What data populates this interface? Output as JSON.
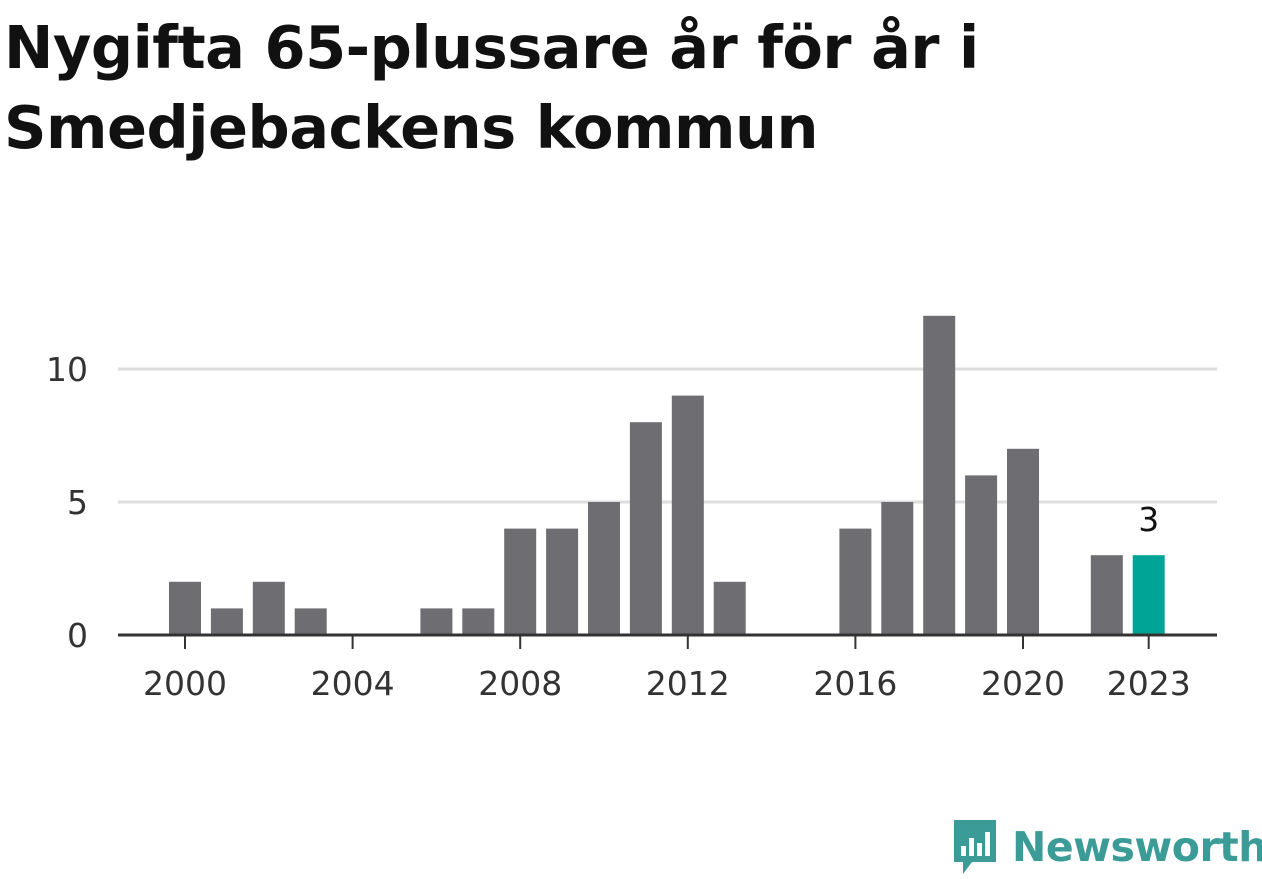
{
  "title": "Nygifta 65-plussare år för år i Smedjebackens kommun",
  "colors": {
    "bar": "#6e6d72",
    "highlight": "#00a497",
    "grid": "#dddddd",
    "axis": "#333333",
    "brand": "#3a9b97"
  },
  "brand": {
    "name": "Newsworthy",
    "icon": "newsworthy-logo-icon"
  },
  "chart_data": {
    "type": "bar",
    "x": [
      2000,
      2001,
      2002,
      2003,
      2004,
      2005,
      2006,
      2007,
      2008,
      2009,
      2010,
      2011,
      2012,
      2013,
      2014,
      2015,
      2016,
      2017,
      2018,
      2019,
      2020,
      2021,
      2022,
      2023
    ],
    "values": [
      2,
      1,
      2,
      1,
      0,
      0,
      1,
      1,
      4,
      4,
      5,
      8,
      9,
      2,
      0,
      0,
      4,
      5,
      12,
      6,
      7,
      0,
      3,
      3
    ],
    "highlight": {
      "x": 2023,
      "label": "3"
    },
    "xticks": [
      2000,
      2004,
      2008,
      2012,
      2016,
      2020,
      2023
    ],
    "xtick_labels": [
      "2000",
      "2004",
      "2008",
      "2012",
      "2016",
      "2020",
      "2023"
    ],
    "yticks": [
      0,
      5,
      10
    ],
    "ytick_labels": [
      "0",
      "5",
      "10"
    ],
    "ylim": [
      0,
      12
    ],
    "grid": true,
    "title": "Nygifta 65-plussare år för år i Smedjebackens kommun",
    "xlabel": "",
    "ylabel": ""
  }
}
